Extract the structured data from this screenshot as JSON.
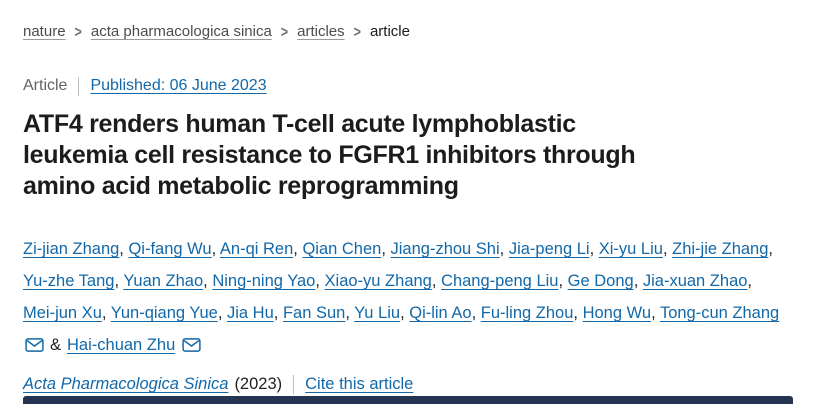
{
  "breadcrumb": {
    "separator": ">",
    "items": [
      {
        "label": "nature"
      },
      {
        "label": "acta pharmacologica sinica"
      },
      {
        "label": "articles"
      },
      {
        "label": "article"
      }
    ]
  },
  "meta": {
    "type_label": "Article",
    "published": "Published: 06 June 2023"
  },
  "title": {
    "full": "ATF4 renders human T-cell acute lymphoblastic leukemia cell resistance to FGFR1 inhibitors through amino acid metabolic reprogramming",
    "lines": [
      "ATF4 renders human T-cell acute lymphoblastic",
      "leukemia cell resistance to FGFR1 inhibitors through",
      "amino acid metabolic reprogramming"
    ]
  },
  "authors": {
    "lines": [
      [
        "Zi-jian Zhang",
        "Qi-fang Wu",
        "An-qi Ren",
        "Qian Chen",
        "Jiang-zhou Shi",
        "Jia-peng Li",
        "Xi-yu Liu",
        "Zhi-jie Zhang"
      ],
      [
        "Yu-zhe Tang",
        "Yuan Zhao",
        "Ning-ning Yao",
        "Xiao-yu Zhang",
        "Chang-peng Liu",
        "Ge Dong",
        "Jia-xuan Zhao"
      ],
      [
        "Mei-jun Xu",
        "Yun-qiang Yue",
        "Jia Hu",
        "Fan Sun",
        "Yu Liu",
        "Qi-lin Ao",
        "Fu-ling Zhou",
        "Hong Wu",
        "Tong-cun Zhang"
      ]
    ],
    "line_trailing_comma": [
      true,
      true,
      false
    ],
    "ampersand": "&",
    "final_author": "Hai-chuan Zhu",
    "corresponding_icons": "mail-icon"
  },
  "journal": {
    "name": "Acta Pharmacologica Sinica",
    "year": "(2023)",
    "cite_label": "Cite this article"
  },
  "colors": {
    "link_blue": "#1268a8",
    "text_dark": "#222222",
    "breadcrumb_gray": "#4c4c4c",
    "meta_gray": "#636363",
    "bottom_panel_navy": "#253450"
  }
}
